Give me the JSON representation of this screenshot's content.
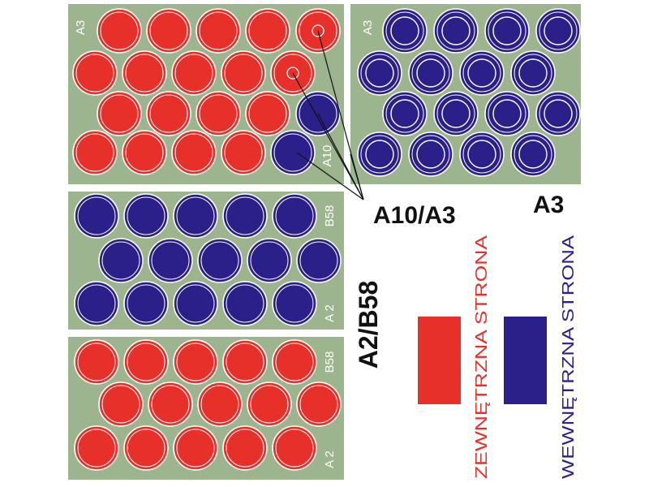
{
  "colors": {
    "sheet_bg": "#9cb58e",
    "red": "#e8302a",
    "blue": "#2b1f8a",
    "outline": "#ffffff",
    "leader": "#111111"
  },
  "sheets": {
    "top_left": {
      "labels": [
        "A3",
        "A10"
      ]
    },
    "top_right": {
      "labels": [
        "A3"
      ]
    },
    "middle": {
      "labels": [
        "B58",
        "A 2"
      ]
    },
    "bottom": {
      "labels": [
        "B58",
        "A 2"
      ]
    }
  },
  "callouts": {
    "a10_a3": "A10/A3",
    "a3": "A3",
    "a2_b58": "A2/B58"
  },
  "legend": {
    "outer": {
      "text": "ZEWNĘTRZNA STRONA",
      "color": "#e8302a"
    },
    "inner": {
      "text": "WEWNĘTRZNA STRONA",
      "color": "#2b1f8a"
    }
  }
}
